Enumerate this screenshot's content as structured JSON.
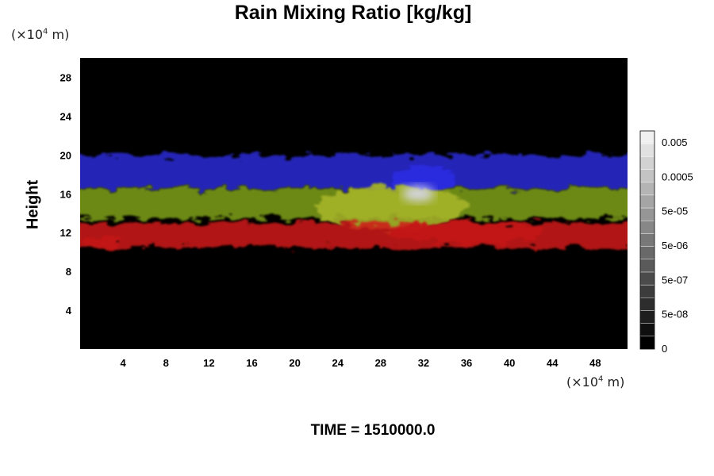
{
  "chart_data": {
    "type": "heatmap",
    "title": "Rain Mixing Ratio [kg/kg]",
    "xlabel": "",
    "ylabel": "Height",
    "x_unit_base": "(×10",
    "x_unit_exp": "4",
    "x_unit_tail": " m)",
    "y_unit_base": "(×10",
    "y_unit_exp": "4",
    "y_unit_tail": " m)",
    "xlim": [
      0,
      51
    ],
    "ylim": [
      0,
      30
    ],
    "x_ticks": [
      4,
      8,
      12,
      16,
      20,
      24,
      28,
      32,
      36,
      40,
      44,
      48
    ],
    "y_ticks": [
      4,
      8,
      12,
      16,
      20,
      24,
      28
    ],
    "colorbar": {
      "labels": [
        "0.005",
        "0.0005",
        "5e-05",
        "5e-06",
        "5e-07",
        "5e-08",
        "0"
      ],
      "levels": 17,
      "gray_low": "#000000",
      "gray_high": "#f0f0f0"
    },
    "features": [
      {
        "band": "upper",
        "color": "#2a2ad6",
        "y_range": [
          16.5,
          20
        ],
        "x_range": [
          0,
          51
        ]
      },
      {
        "band": "middle",
        "color": "#7fa11a",
        "y_range": [
          13.5,
          16.5
        ],
        "x_range": [
          0,
          51
        ]
      },
      {
        "band": "lower",
        "color": "#d01515",
        "y_range": [
          10.5,
          13
        ],
        "x_range": [
          0,
          51
        ]
      },
      {
        "band": "peak",
        "color": "#d8d8f0",
        "y_range": [
          15.5,
          16.5
        ],
        "x_range": [
          30,
          33
        ]
      }
    ],
    "background": "#000000",
    "grid": false
  },
  "footer": {
    "time_label": "TIME = 1510000.0"
  }
}
